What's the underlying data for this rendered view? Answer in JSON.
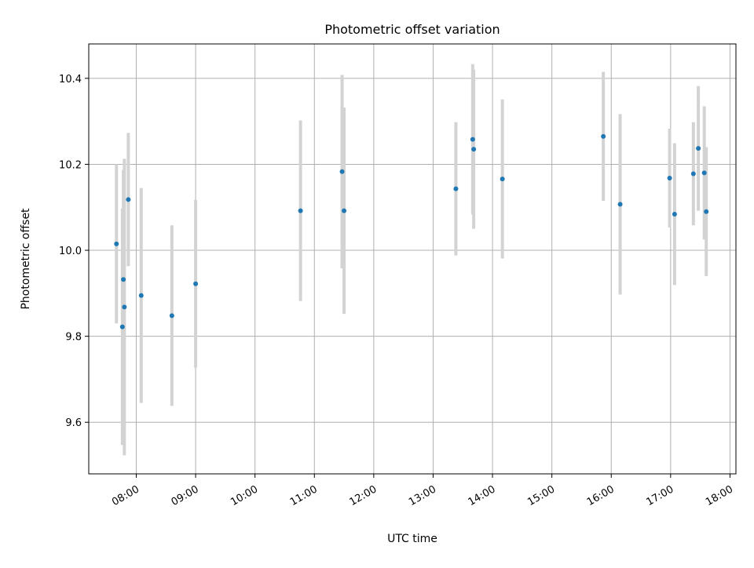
{
  "chart_data": {
    "type": "scatter",
    "title": "Photometric offset variation",
    "xlabel": "UTC time",
    "ylabel": "Photometric offset",
    "xlim": [
      "07:12",
      "18:06"
    ],
    "ylim": [
      9.48,
      10.48
    ],
    "x_ticks": [
      "08:00",
      "09:00",
      "10:00",
      "11:00",
      "12:00",
      "13:00",
      "14:00",
      "15:00",
      "16:00",
      "17:00",
      "18:00"
    ],
    "y_ticks": [
      "9.6",
      "9.8",
      "10.0",
      "10.2",
      "10.4"
    ],
    "grid": true,
    "series": [
      {
        "marker_color": "#1f77b4",
        "errorbar_color": "#d3d3d3",
        "points": [
          {
            "x": "07:40",
            "y": 10.015,
            "yerr": 0.185
          },
          {
            "x": "07:46",
            "y": 9.822,
            "yerr": 0.275
          },
          {
            "x": "07:47",
            "y": 9.932,
            "yerr": 0.255
          },
          {
            "x": "07:48",
            "y": 9.868,
            "yerr": 0.345
          },
          {
            "x": "07:52",
            "y": 10.118,
            "yerr": 0.155
          },
          {
            "x": "08:05",
            "y": 9.895,
            "yerr": 0.25
          },
          {
            "x": "08:36",
            "y": 9.848,
            "yerr": 0.21
          },
          {
            "x": "09:00",
            "y": 9.922,
            "yerr": 0.195
          },
          {
            "x": "10:46",
            "y": 10.092,
            "yerr": 0.21
          },
          {
            "x": "11:28",
            "y": 10.183,
            "yerr": 0.225
          },
          {
            "x": "11:30",
            "y": 10.092,
            "yerr": 0.24
          },
          {
            "x": "13:23",
            "y": 10.143,
            "yerr": 0.155
          },
          {
            "x": "13:40",
            "y": 10.258,
            "yerr": 0.175
          },
          {
            "x": "13:41",
            "y": 10.235,
            "yerr": 0.185
          },
          {
            "x": "14:10",
            "y": 10.166,
            "yerr": 0.185
          },
          {
            "x": "15:52",
            "y": 10.265,
            "yerr": 0.15
          },
          {
            "x": "16:09",
            "y": 10.107,
            "yerr": 0.21
          },
          {
            "x": "16:59",
            "y": 10.168,
            "yerr": 0.115
          },
          {
            "x": "17:04",
            "y": 10.084,
            "yerr": 0.165
          },
          {
            "x": "17:23",
            "y": 10.178,
            "yerr": 0.12
          },
          {
            "x": "17:28",
            "y": 10.237,
            "yerr": 0.145
          },
          {
            "x": "17:34",
            "y": 10.18,
            "yerr": 0.155
          },
          {
            "x": "17:36",
            "y": 10.09,
            "yerr": 0.15
          }
        ]
      }
    ]
  }
}
